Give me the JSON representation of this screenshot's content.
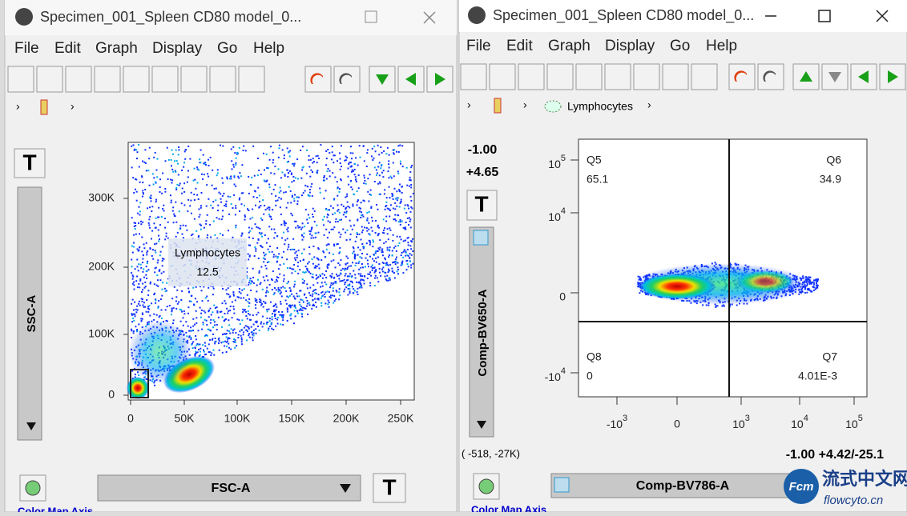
{
  "windows": [
    {
      "title": "Specimen_001_Spleen CD80 model_0...",
      "menu": [
        "File",
        "Edit",
        "Graph",
        "Display",
        "Go",
        "Help"
      ],
      "plot": {
        "y_axis_label": "SSC-A",
        "x_axis_label": "FSC-A",
        "y_ticks": [
          "300K",
          "200K",
          "100K",
          "0"
        ],
        "x_ticks": [
          "0",
          "50K",
          "100K",
          "150K",
          "200K",
          "250K"
        ],
        "gate": {
          "name": "Lymphocytes",
          "value": "12.5"
        }
      },
      "footer": "Color Map Axis"
    },
    {
      "title": "Specimen_001_Spleen CD80 model_0...",
      "menu": [
        "File",
        "Edit",
        "Graph",
        "Display",
        "Go",
        "Help"
      ],
      "breadcrumb": "Lymphocytes",
      "scale_labels": [
        "-1.00",
        "+4.65"
      ],
      "plot": {
        "y_axis_label": "Comp-BV650-A",
        "x_axis_label": "Comp-BV786-A",
        "y_ticks": [
          {
            "base": "10",
            "exponent": "5"
          },
          {
            "base": "10",
            "exponent": "4"
          },
          "0",
          {
            "base": "-10",
            "exponent": "4"
          }
        ],
        "x_ticks": [
          {
            "base": "-10",
            "exponent": "3"
          },
          "0",
          {
            "base": "10",
            "exponent": "3"
          },
          {
            "base": "10",
            "exponent": "4"
          },
          {
            "base": "10",
            "exponent": "5"
          }
        ],
        "quadrants": [
          {
            "name": "Q5",
            "value": "65.1"
          },
          {
            "name": "Q6",
            "value": "34.9"
          },
          {
            "name": "Q8",
            "value": "0"
          },
          {
            "name": "Q7",
            "value": "4.01E-3"
          }
        ]
      },
      "coordinates": "(  -518,  -27K)",
      "status": "-1.00 +4.42/-25.1",
      "footer": "Color Map Axis"
    }
  ],
  "watermark": {
    "text": "流式中文网",
    "url": "flowcyto.cn",
    "logo": "Fcm"
  }
}
